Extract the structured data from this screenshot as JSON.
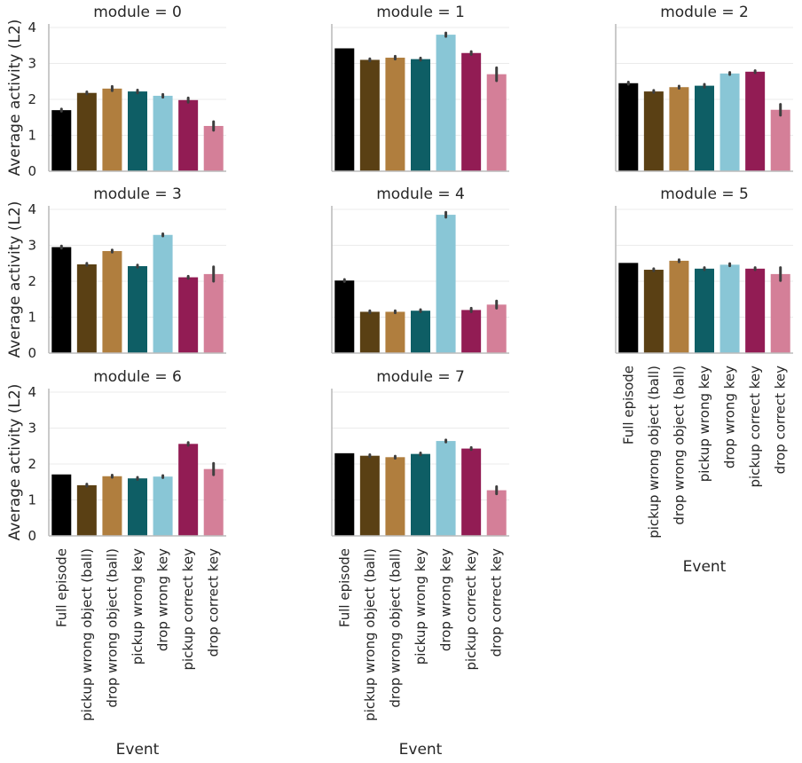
{
  "chart_data": {
    "type": "bar",
    "facet_title_prefix": "module = ",
    "ylabel": "Average activity (L2)",
    "xlabel": "Event",
    "ylim": [
      0,
      4.1
    ],
    "yticks": [
      "0",
      "1",
      "2",
      "3",
      "4"
    ],
    "grid": true,
    "categories": [
      "Full episode",
      "pickup wrong object (ball)",
      "drop wrong object (ball)",
      "pickup wrong key",
      "drop wrong key",
      "pickup correct key",
      "drop correct key"
    ],
    "colors": [
      "#000000",
      "#5a4014",
      "#b07e3e",
      "#0e5e65",
      "#89c6d6",
      "#921c54",
      "#d47f98"
    ],
    "panels": [
      {
        "module": "0",
        "values": [
          1.7,
          2.18,
          2.3,
          2.22,
          2.1,
          1.98,
          1.26
        ],
        "err": [
          0.03,
          0.03,
          0.06,
          0.04,
          0.04,
          0.06,
          0.12
        ]
      },
      {
        "module": "1",
        "values": [
          3.42,
          3.1,
          3.16,
          3.12,
          3.8,
          3.29,
          2.7
        ],
        "err": [
          0.0,
          0.03,
          0.04,
          0.03,
          0.05,
          0.04,
          0.18
        ]
      },
      {
        "module": "2",
        "values": [
          2.45,
          2.22,
          2.34,
          2.38,
          2.72,
          2.77,
          1.71
        ],
        "err": [
          0.03,
          0.03,
          0.03,
          0.04,
          0.03,
          0.03,
          0.15
        ]
      },
      {
        "module": "3",
        "values": [
          2.95,
          2.47,
          2.84,
          2.42,
          3.29,
          2.11,
          2.2
        ],
        "err": [
          0.03,
          0.03,
          0.03,
          0.03,
          0.03,
          0.03,
          0.2
        ]
      },
      {
        "module": "4",
        "values": [
          2.02,
          1.15,
          1.15,
          1.18,
          3.85,
          1.2,
          1.35
        ],
        "err": [
          0.03,
          0.03,
          0.03,
          0.03,
          0.07,
          0.05,
          0.1
        ]
      },
      {
        "module": "5",
        "values": [
          2.51,
          2.32,
          2.57,
          2.35,
          2.46,
          2.35,
          2.2
        ],
        "err": [
          0.0,
          0.03,
          0.03,
          0.03,
          0.03,
          0.03,
          0.18
        ]
      },
      {
        "module": "6",
        "values": [
          1.71,
          1.41,
          1.66,
          1.6,
          1.65,
          2.56,
          1.86
        ],
        "err": [
          0.0,
          0.03,
          0.03,
          0.03,
          0.03,
          0.04,
          0.16
        ]
      },
      {
        "module": "7",
        "values": [
          2.3,
          2.23,
          2.19,
          2.28,
          2.64,
          2.43,
          1.27
        ],
        "err": [
          0.0,
          0.03,
          0.03,
          0.03,
          0.03,
          0.03,
          0.1
        ]
      }
    ]
  }
}
